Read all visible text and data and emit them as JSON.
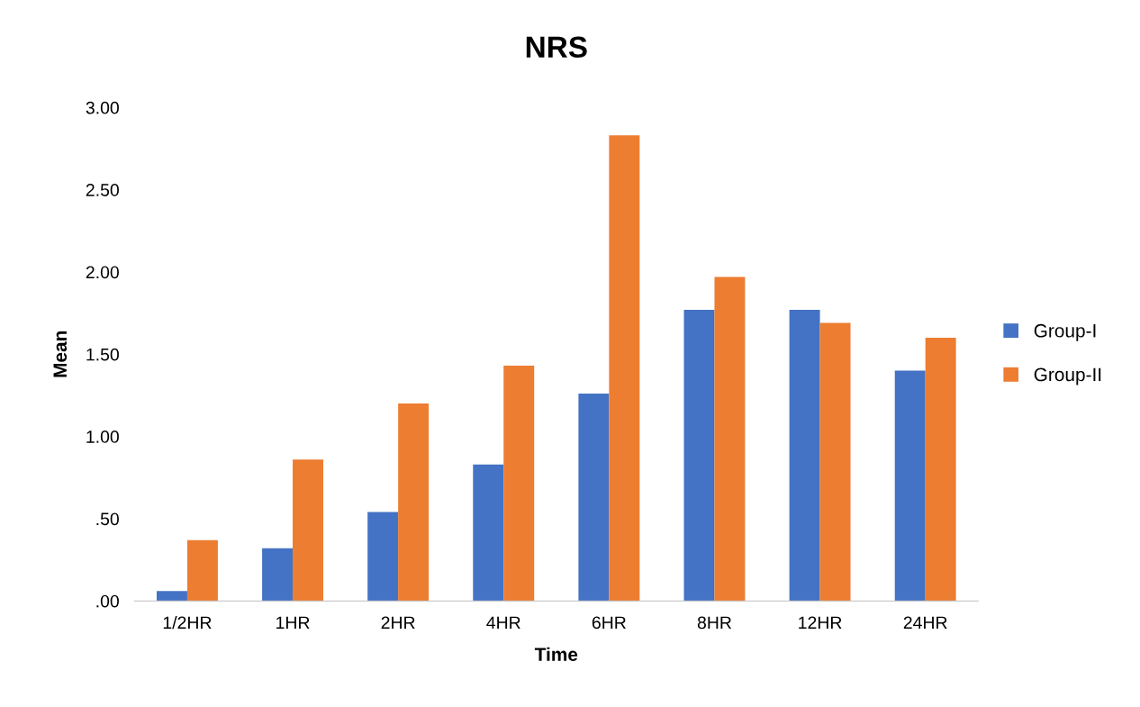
{
  "chart_data": {
    "type": "bar",
    "title": "NRS",
    "xlabel": "Time",
    "ylabel": "Mean",
    "categories": [
      "1/2HR",
      "1HR",
      "2HR",
      "4HR",
      "6HR",
      "8HR",
      "12HR",
      "24HR"
    ],
    "series": [
      {
        "name": "Group-I",
        "color": "#4472c4",
        "values": [
          0.06,
          0.32,
          0.54,
          0.83,
          1.26,
          1.77,
          1.77,
          1.4
        ]
      },
      {
        "name": "Group-II",
        "color": "#ed7d31",
        "values": [
          0.37,
          0.86,
          1.2,
          1.43,
          2.83,
          1.97,
          1.69,
          1.6
        ]
      }
    ],
    "ylim": [
      0,
      3
    ],
    "yticks": [
      {
        "value": 0,
        "label": ".00"
      },
      {
        "value": 0.5,
        "label": ".50"
      },
      {
        "value": 1,
        "label": "1.00"
      },
      {
        "value": 1.5,
        "label": "1.50"
      },
      {
        "value": 2,
        "label": "2.00"
      },
      {
        "value": 2.5,
        "label": "2.50"
      },
      {
        "value": 3,
        "label": "3.00"
      }
    ],
    "grid": false,
    "legend": "right"
  }
}
